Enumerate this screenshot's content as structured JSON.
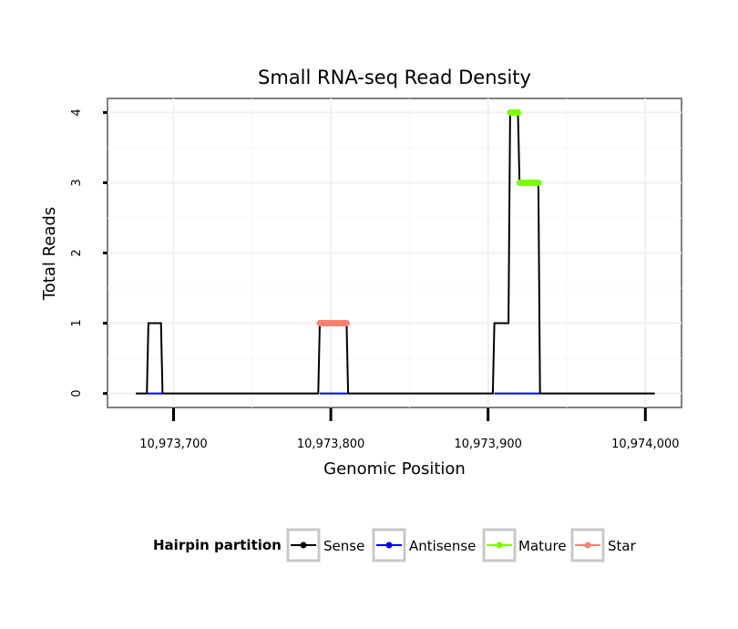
{
  "chart_data": {
    "type": "line",
    "title": "Small RNA-seq Read Density",
    "xlabel": "Genomic Position",
    "ylabel": "Total Reads",
    "xlim": [
      10973658,
      10974023
    ],
    "ylim": [
      -0.2,
      4.2
    ],
    "xticks": [
      10973700,
      10973800,
      10973900,
      10974000
    ],
    "xtick_labels": [
      "10,973,700",
      "10,973,800",
      "10,973,900",
      "10,974,000"
    ],
    "yticks": [
      0,
      1,
      2,
      3,
      4
    ],
    "ytick_labels": [
      "0",
      "1",
      "2",
      "3",
      "4"
    ],
    "grid": true,
    "legend": {
      "title": "Hairpin partition",
      "position": "bottom",
      "entries": [
        {
          "name": "Sense",
          "color": "#000000"
        },
        {
          "name": "Antisense",
          "color": "#0000ff"
        },
        {
          "name": "Mature",
          "color": "#7cfc00"
        },
        {
          "name": "Star",
          "color": "#fa8072"
        }
      ]
    },
    "series": [
      {
        "name": "Sense",
        "color": "#000000",
        "x": [
          10973676,
          10973683,
          10973684,
          10973692,
          10973693,
          10973792,
          10973793,
          10973810,
          10973811,
          10973903,
          10973904,
          10973913,
          10973914,
          10973919,
          10973920,
          10973932,
          10973933,
          10974006
        ],
        "y": [
          0,
          0,
          1,
          1,
          0,
          0,
          1,
          1,
          0,
          0,
          1,
          1,
          4,
          4,
          3,
          3,
          0,
          0
        ]
      },
      {
        "name": "Antisense",
        "color": "#0000ff",
        "segments": [
          [
            10973683,
            10973693
          ],
          [
            10973793,
            10973811
          ],
          [
            10973904,
            10973933
          ]
        ],
        "y": 0
      },
      {
        "name": "Mature",
        "color": "#7cfc00",
        "segments": [
          [
            10973914,
            10973919,
            4
          ],
          [
            10973920,
            10973932,
            3
          ]
        ]
      },
      {
        "name": "Star",
        "color": "#fa8072",
        "segments": [
          [
            10973793,
            10973810,
            1
          ]
        ]
      }
    ]
  }
}
